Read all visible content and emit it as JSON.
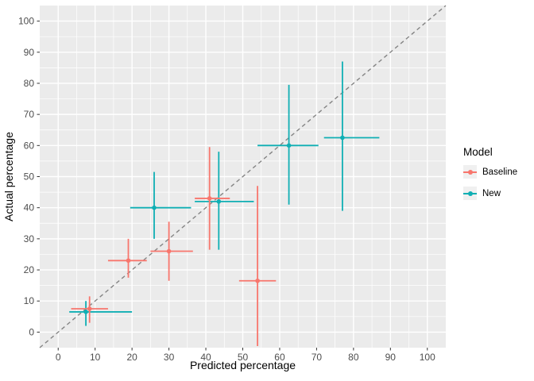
{
  "chart_data": {
    "type": "scatter",
    "title": "",
    "xlabel": "Predicted percentage",
    "ylabel": "Actual percentage",
    "xlim": [
      -5,
      105
    ],
    "ylim": [
      -5,
      105
    ],
    "x_ticks": [
      0,
      10,
      20,
      30,
      40,
      50,
      60,
      70,
      80,
      90,
      100
    ],
    "y_ticks": [
      0,
      10,
      20,
      30,
      40,
      50,
      60,
      70,
      80,
      90,
      100
    ],
    "grid": "major-and-minor-white-on-gray",
    "identity_line": {
      "style": "dashed",
      "from": [
        -5,
        -5
      ],
      "to": [
        105,
        105
      ]
    },
    "legend": {
      "title": "Model",
      "position": "right",
      "items": [
        {
          "label": "Baseline",
          "color": "#F8766D"
        },
        {
          "label": "New",
          "color": "#10AFB4"
        }
      ]
    },
    "series": [
      {
        "name": "Baseline",
        "color": "#F8766D",
        "points": [
          {
            "x": 8.5,
            "y": 7.5,
            "xlo": 3.5,
            "xhi": 13.5,
            "ylo": 3,
            "yhi": 11.5
          },
          {
            "x": 19,
            "y": 23,
            "xlo": 13.5,
            "xhi": 24,
            "ylo": 17.5,
            "yhi": 30
          },
          {
            "x": 30,
            "y": 26,
            "xlo": 25,
            "xhi": 36.5,
            "ylo": 16.5,
            "yhi": 35.5
          },
          {
            "x": 41,
            "y": 43,
            "xlo": 37,
            "xhi": 46.5,
            "ylo": 26.5,
            "yhi": 59.5
          },
          {
            "x": 54,
            "y": 16.5,
            "xlo": 49,
            "xhi": 59,
            "ylo": -4.5,
            "yhi": 47
          }
        ]
      },
      {
        "name": "New",
        "color": "#10AFB4",
        "points": [
          {
            "x": 7.5,
            "y": 6.5,
            "xlo": 3,
            "xhi": 20,
            "ylo": 2,
            "yhi": 10
          },
          {
            "x": 26,
            "y": 40,
            "xlo": 19.5,
            "xhi": 36,
            "ylo": 30,
            "yhi": 51.5
          },
          {
            "x": 43.5,
            "y": 42,
            "xlo": 37,
            "xhi": 53,
            "ylo": 26.5,
            "yhi": 58
          },
          {
            "x": 62.5,
            "y": 60,
            "xlo": 54,
            "xhi": 70.5,
            "ylo": 41,
            "yhi": 79.5
          },
          {
            "x": 77,
            "y": 62.5,
            "xlo": 72,
            "xhi": 87,
            "ylo": 39,
            "yhi": 87
          }
        ]
      }
    ]
  },
  "colors": {
    "panel_bg": "#EBEBEB",
    "grid": "#FFFFFF",
    "tick_mark": "#333333",
    "axis_text": "#4D4D4D",
    "identity_line": "#848484",
    "legend_key_bg": "#F0F0F0",
    "baseline": "#F8766D",
    "new": "#10AFB4"
  }
}
